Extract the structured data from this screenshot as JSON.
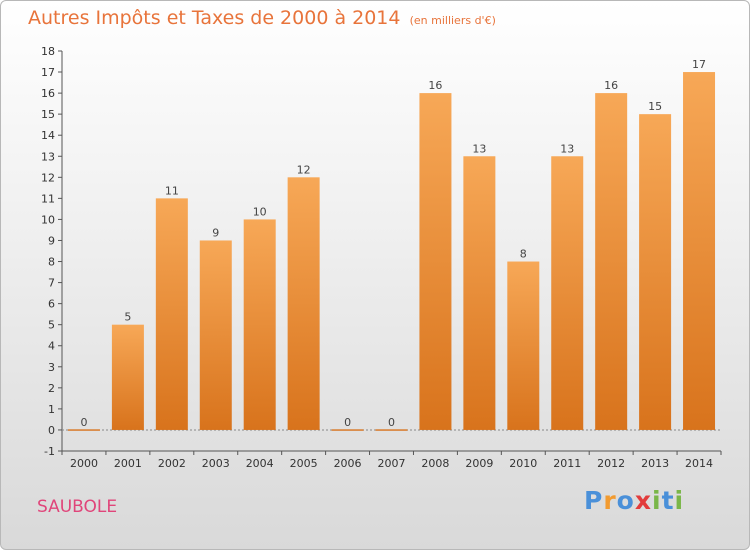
{
  "header": {
    "title": "Autres Impôts et Taxes de 2000 à 2014",
    "unit": "(en milliers d'€)"
  },
  "footer": {
    "city": "SAUBOLE",
    "brand": "Proxiti"
  },
  "colors": {
    "bar_top": "#f7a857",
    "bar_bottom": "#d8731c",
    "title": "#e8743b",
    "city": "#e0457a"
  },
  "chart_data": {
    "type": "bar",
    "title": "Autres Impôts et Taxes de 2000 à 2014",
    "subtitle": "(en milliers d'€)",
    "xlabel": "",
    "ylabel": "",
    "categories": [
      "2000",
      "2001",
      "2002",
      "2003",
      "2004",
      "2005",
      "2006",
      "2007",
      "2008",
      "2009",
      "2010",
      "2011",
      "2012",
      "2013",
      "2014"
    ],
    "values": [
      0,
      5,
      11,
      9,
      10,
      12,
      0,
      0,
      16,
      13,
      8,
      13,
      16,
      15,
      17
    ],
    "ylim": [
      -1,
      18
    ],
    "yticks": [
      -1,
      0,
      1,
      2,
      3,
      4,
      5,
      6,
      7,
      8,
      9,
      10,
      11,
      12,
      13,
      14,
      15,
      16,
      17,
      18
    ],
    "grid": false,
    "legend": "none"
  }
}
